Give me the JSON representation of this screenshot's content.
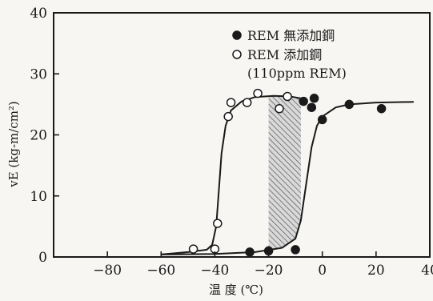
{
  "chart_data": {
    "type": "scatter",
    "xlabel": "温 度 (℃)",
    "ylabel": "vE (kg-m/cm²)",
    "xlim": [
      -100,
      40
    ],
    "ylim": [
      0,
      40
    ],
    "x_ticks": [
      "−80",
      "−60",
      "−40",
      "−20",
      "0",
      "20",
      "40"
    ],
    "x_tick_values": [
      -80,
      -60,
      -40,
      -20,
      0,
      20,
      40
    ],
    "y_ticks": [
      "0",
      "10",
      "20",
      "30",
      "40"
    ],
    "y_tick_values": [
      0,
      10,
      20,
      30,
      40
    ],
    "legend_placement": "top-right",
    "shaded_region": "between the two transition curves",
    "series": [
      {
        "name": "REM 無添加鋼",
        "legend_line2": "",
        "marker": "filled-circle",
        "points": [
          {
            "x": -27,
            "y": 0.8
          },
          {
            "x": -20,
            "y": 1.0
          },
          {
            "x": -10,
            "y": 1.2
          },
          {
            "x": -7,
            "y": 25.5
          },
          {
            "x": -4,
            "y": 24.5
          },
          {
            "x": -3,
            "y": 26.0
          },
          {
            "x": 0,
            "y": 22.5
          },
          {
            "x": 10,
            "y": 25.0
          },
          {
            "x": 22,
            "y": 24.3
          }
        ],
        "curve": [
          [
            -60,
            0.4
          ],
          [
            -40,
            0.5
          ],
          [
            -25,
            0.8
          ],
          [
            -15,
            1.5
          ],
          [
            -10,
            3
          ],
          [
            -8,
            6
          ],
          [
            -6,
            12
          ],
          [
            -4,
            18
          ],
          [
            -2,
            21.5
          ],
          [
            0,
            23
          ],
          [
            5,
            24.5
          ],
          [
            10,
            25
          ],
          [
            20,
            25.3
          ],
          [
            34,
            25.4
          ]
        ]
      },
      {
        "name": "REM 添加鋼",
        "legend_line2": "(110ppm REM)",
        "marker": "open-circle",
        "points": [
          {
            "x": -48,
            "y": 1.3
          },
          {
            "x": -40,
            "y": 1.3
          },
          {
            "x": -39,
            "y": 5.5
          },
          {
            "x": -35,
            "y": 23.0
          },
          {
            "x": -34,
            "y": 25.3
          },
          {
            "x": -28,
            "y": 25.3
          },
          {
            "x": -24,
            "y": 26.8
          },
          {
            "x": -16,
            "y": 24.3
          },
          {
            "x": -13,
            "y": 26.3
          }
        ],
        "curve": [
          [
            -60,
            0.4
          ],
          [
            -50,
            0.8
          ],
          [
            -43,
            1.2
          ],
          [
            -41,
            2
          ],
          [
            -39.5,
            5
          ],
          [
            -38.5,
            11
          ],
          [
            -37.5,
            17
          ],
          [
            -36,
            21.5
          ],
          [
            -34,
            24
          ],
          [
            -30,
            25.5
          ],
          [
            -25,
            26.2
          ],
          [
            -18,
            26.4
          ],
          [
            -12,
            26.3
          ],
          [
            -8,
            26.0
          ]
        ]
      }
    ]
  }
}
